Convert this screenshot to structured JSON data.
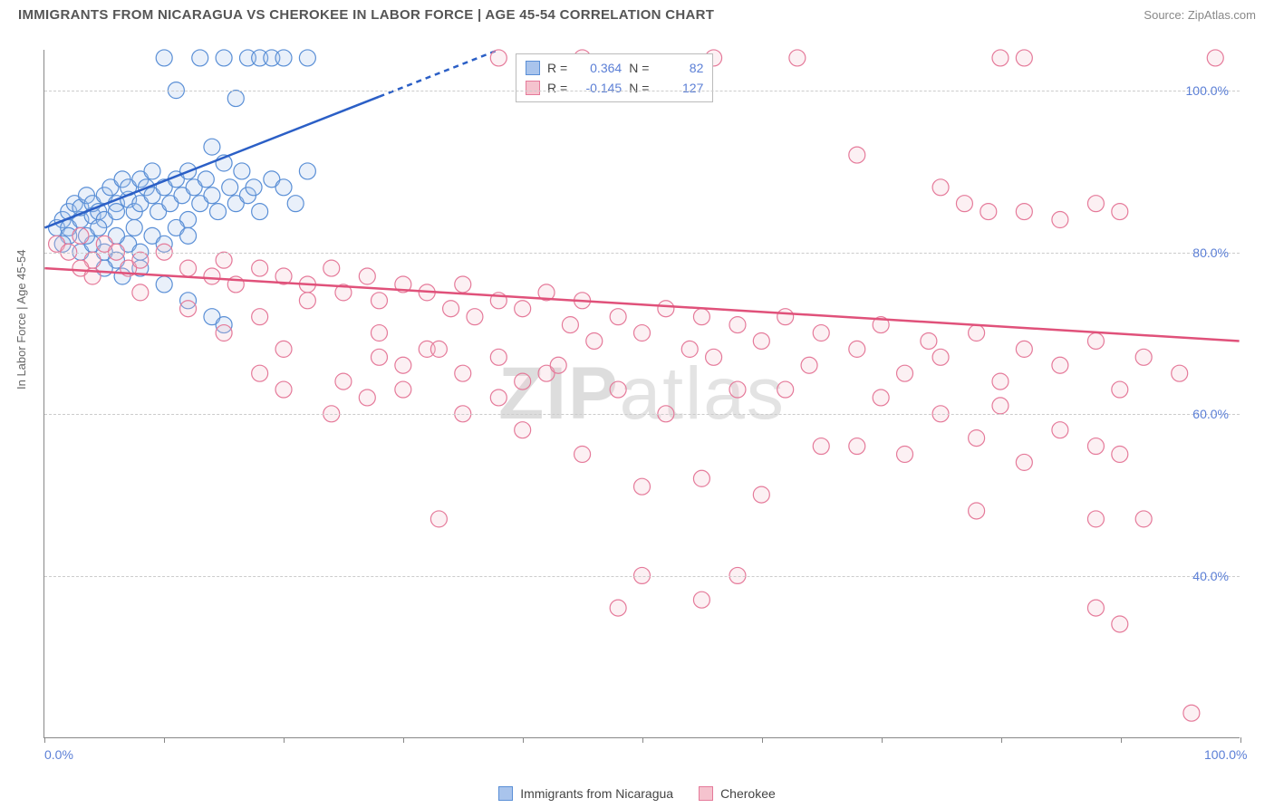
{
  "header": {
    "title": "IMMIGRANTS FROM NICARAGUA VS CHEROKEE IN LABOR FORCE | AGE 45-54 CORRELATION CHART",
    "source_label": "Source:",
    "source_name": "ZipAtlas.com"
  },
  "chart": {
    "type": "scatter",
    "y_axis_label": "In Labor Force | Age 45-54",
    "watermark": "ZIPatlas",
    "xlim": [
      0,
      100
    ],
    "ylim": [
      20,
      105
    ],
    "x_ticks": [
      0,
      10,
      20,
      30,
      40,
      50,
      60,
      70,
      80,
      90,
      100
    ],
    "x_tick_labels": {
      "0": "0.0%",
      "100": "100.0%"
    },
    "y_ticks": [
      40,
      60,
      80,
      100
    ],
    "y_tick_labels": [
      "40.0%",
      "60.0%",
      "80.0%",
      "100.0%"
    ],
    "grid_color": "#cccccc",
    "background_color": "#ffffff",
    "axis_color": "#888888",
    "tick_label_color": "#5b7fd6",
    "marker_radius": 9,
    "marker_stroke_width": 1.2,
    "marker_fill_opacity": 0.25,
    "series": [
      {
        "name": "Immigrants from Nicaragua",
        "color_fill": "#a9c4ec",
        "color_stroke": "#5a8fd6",
        "r_value": "0.364",
        "n_value": "82",
        "trend": {
          "x1": 0,
          "y1": 83,
          "x2": 38,
          "y2": 105,
          "dash_from_x": 28
        },
        "points": [
          [
            1,
            83
          ],
          [
            1.5,
            84
          ],
          [
            2,
            85
          ],
          [
            2,
            83
          ],
          [
            2.5,
            86
          ],
          [
            3,
            84
          ],
          [
            3,
            85.5
          ],
          [
            3.5,
            87
          ],
          [
            4,
            84.5
          ],
          [
            4,
            86
          ],
          [
            4.5,
            85
          ],
          [
            5,
            87
          ],
          [
            5,
            84
          ],
          [
            5.5,
            88
          ],
          [
            6,
            86
          ],
          [
            6,
            85
          ],
          [
            6.5,
            89
          ],
          [
            7,
            86.5
          ],
          [
            7,
            88
          ],
          [
            7.5,
            85
          ],
          [
            8,
            89
          ],
          [
            8,
            86
          ],
          [
            8.5,
            88
          ],
          [
            9,
            87
          ],
          [
            9,
            90
          ],
          [
            9.5,
            85
          ],
          [
            10,
            88
          ],
          [
            10,
            104
          ],
          [
            10.5,
            86
          ],
          [
            11,
            89
          ],
          [
            11,
            100
          ],
          [
            11.5,
            87
          ],
          [
            12,
            90
          ],
          [
            12,
            84
          ],
          [
            12.5,
            88
          ],
          [
            13,
            104
          ],
          [
            13,
            86
          ],
          [
            13.5,
            89
          ],
          [
            14,
            87
          ],
          [
            14,
            93
          ],
          [
            14.5,
            85
          ],
          [
            15,
            91
          ],
          [
            15,
            104
          ],
          [
            15.5,
            88
          ],
          [
            16,
            86
          ],
          [
            16,
            99
          ],
          [
            16.5,
            90
          ],
          [
            17,
            104
          ],
          [
            17,
            87
          ],
          [
            17.5,
            88
          ],
          [
            18,
            104
          ],
          [
            18,
            85
          ],
          [
            19,
            89
          ],
          [
            19,
            104
          ],
          [
            20,
            88
          ],
          [
            20,
            104
          ],
          [
            21,
            86
          ],
          [
            22,
            90
          ],
          [
            22,
            104
          ],
          [
            3,
            80
          ],
          [
            4,
            81
          ],
          [
            5,
            80
          ],
          [
            6,
            79
          ],
          [
            7,
            81
          ],
          [
            8,
            80
          ],
          [
            2,
            82
          ],
          [
            1.5,
            81
          ],
          [
            3.5,
            82
          ],
          [
            4.5,
            83
          ],
          [
            6,
            82
          ],
          [
            7.5,
            83
          ],
          [
            9,
            82
          ],
          [
            10,
            81
          ],
          [
            11,
            83
          ],
          [
            12,
            82
          ],
          [
            5,
            78
          ],
          [
            6.5,
            77
          ],
          [
            8,
            78
          ],
          [
            10,
            76
          ],
          [
            12,
            74
          ],
          [
            14,
            72
          ],
          [
            15,
            71
          ]
        ]
      },
      {
        "name": "Cherokee",
        "color_fill": "#f5c3ce",
        "color_stroke": "#e57a9a",
        "r_value": "-0.145",
        "n_value": "127",
        "trend": {
          "x1": 0,
          "y1": 78,
          "x2": 100,
          "y2": 69
        },
        "points": [
          [
            1,
            81
          ],
          [
            2,
            80
          ],
          [
            3,
            82
          ],
          [
            4,
            79
          ],
          [
            5,
            81
          ],
          [
            3,
            78
          ],
          [
            4,
            77
          ],
          [
            6,
            80
          ],
          [
            7,
            78
          ],
          [
            8,
            79
          ],
          [
            10,
            80
          ],
          [
            12,
            78
          ],
          [
            14,
            77
          ],
          [
            15,
            79
          ],
          [
            16,
            76
          ],
          [
            18,
            78
          ],
          [
            20,
            77
          ],
          [
            22,
            76
          ],
          [
            24,
            78
          ],
          [
            25,
            75
          ],
          [
            27,
            77
          ],
          [
            28,
            74
          ],
          [
            30,
            76
          ],
          [
            32,
            75
          ],
          [
            34,
            73
          ],
          [
            35,
            76
          ],
          [
            36,
            72
          ],
          [
            38,
            74
          ],
          [
            40,
            73
          ],
          [
            42,
            75
          ],
          [
            44,
            71
          ],
          [
            45,
            74
          ],
          [
            46,
            69
          ],
          [
            48,
            72
          ],
          [
            50,
            70
          ],
          [
            52,
            73
          ],
          [
            54,
            68
          ],
          [
            55,
            72
          ],
          [
            56,
            67
          ],
          [
            58,
            71
          ],
          [
            60,
            69
          ],
          [
            62,
            72
          ],
          [
            64,
            66
          ],
          [
            65,
            70
          ],
          [
            68,
            68
          ],
          [
            70,
            71
          ],
          [
            72,
            65
          ],
          [
            74,
            69
          ],
          [
            75,
            67
          ],
          [
            78,
            70
          ],
          [
            80,
            64
          ],
          [
            82,
            68
          ],
          [
            85,
            66
          ],
          [
            88,
            69
          ],
          [
            90,
            63
          ],
          [
            92,
            67
          ],
          [
            95,
            65
          ],
          [
            38,
            104
          ],
          [
            45,
            104
          ],
          [
            56,
            104
          ],
          [
            63,
            104
          ],
          [
            80,
            104
          ],
          [
            82,
            104
          ],
          [
            98,
            104
          ],
          [
            68,
            92
          ],
          [
            75,
            88
          ],
          [
            77,
            86
          ],
          [
            79,
            85
          ],
          [
            82,
            85
          ],
          [
            85,
            84
          ],
          [
            88,
            86
          ],
          [
            90,
            85
          ],
          [
            28,
            67
          ],
          [
            30,
            66
          ],
          [
            32,
            68
          ],
          [
            35,
            60
          ],
          [
            38,
            62
          ],
          [
            40,
            58
          ],
          [
            42,
            65
          ],
          [
            45,
            55
          ],
          [
            48,
            63
          ],
          [
            50,
            51
          ],
          [
            52,
            60
          ],
          [
            55,
            52
          ],
          [
            58,
            63
          ],
          [
            60,
            50
          ],
          [
            62,
            63
          ],
          [
            65,
            56
          ],
          [
            68,
            56
          ],
          [
            70,
            62
          ],
          [
            72,
            55
          ],
          [
            75,
            60
          ],
          [
            78,
            57
          ],
          [
            80,
            61
          ],
          [
            82,
            54
          ],
          [
            85,
            58
          ],
          [
            88,
            56
          ],
          [
            90,
            55
          ],
          [
            92,
            47
          ],
          [
            88,
            47
          ],
          [
            78,
            48
          ],
          [
            33,
            47
          ],
          [
            50,
            40
          ],
          [
            48,
            36
          ],
          [
            55,
            37
          ],
          [
            58,
            40
          ],
          [
            88,
            36
          ],
          [
            90,
            34
          ],
          [
            96,
            23
          ],
          [
            8,
            75
          ],
          [
            12,
            73
          ],
          [
            15,
            70
          ],
          [
            18,
            72
          ],
          [
            20,
            68
          ],
          [
            22,
            74
          ],
          [
            25,
            64
          ],
          [
            28,
            70
          ],
          [
            30,
            63
          ],
          [
            33,
            68
          ],
          [
            35,
            65
          ],
          [
            38,
            67
          ],
          [
            40,
            64
          ],
          [
            43,
            66
          ],
          [
            18,
            65
          ],
          [
            20,
            63
          ],
          [
            24,
            60
          ],
          [
            27,
            62
          ]
        ]
      }
    ],
    "legend_bottom": [
      {
        "label": "Immigrants from Nicaragua",
        "fill": "#a9c4ec",
        "stroke": "#5a8fd6"
      },
      {
        "label": "Cherokee",
        "fill": "#f5c3ce",
        "stroke": "#e57a9a"
      }
    ]
  }
}
